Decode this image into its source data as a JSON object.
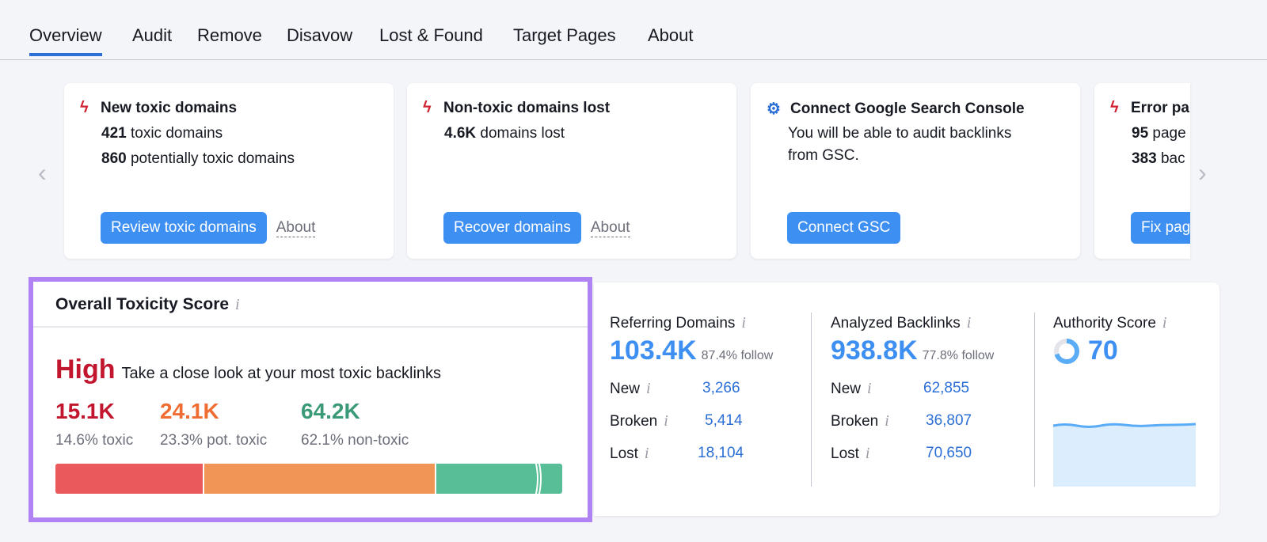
{
  "tabs": [
    "Overview",
    "Audit",
    "Remove",
    "Disavow",
    "Lost & Found",
    "Target Pages",
    "About"
  ],
  "cards": [
    {
      "icon": "bolt-icon",
      "title": "New toxic domains",
      "lines": [
        {
          "b": "421",
          "t": " toxic domains"
        },
        {
          "b": "860",
          "t": " potentially toxic domains"
        }
      ],
      "button": "Review toxic domains",
      "about": "About"
    },
    {
      "icon": "bolt-icon",
      "title": "Non-toxic domains lost",
      "lines": [
        {
          "b": "4.6K",
          "t": " domains lost"
        }
      ],
      "button": "Recover domains",
      "about": "About"
    },
    {
      "icon": "gear-icon",
      "title": "Connect Google Search Console",
      "lines": [
        {
          "b": "",
          "t": "You will be able to audit backlinks"
        },
        {
          "b": "",
          "t": "from GSC."
        }
      ],
      "button": "Connect GSC"
    },
    {
      "icon": "bolt-icon",
      "title": "Error pa",
      "lines": [
        {
          "b": "95",
          "t": " page"
        },
        {
          "b": "383",
          "t": " bac"
        }
      ],
      "button": "Fix pag"
    }
  ],
  "toxicity": {
    "title": "Overall Toxicity Score",
    "info": "i",
    "level": "High",
    "message": "Take a close look at your most toxic backlinks",
    "groups": [
      {
        "value": "15.1K",
        "pct": "14.6% toxic",
        "share": 14.6,
        "color": "#c2162e",
        "bar": "#ea5a5c"
      },
      {
        "value": "24.1K",
        "pct": "23.3% pot. toxic",
        "share": 23.3,
        "color": "#ef6d32",
        "bar": "#f09556"
      },
      {
        "value": "64.2K",
        "pct": "62.1% non-toxic",
        "share": 62.1,
        "color": "#3a9a78",
        "bar": "#58be97"
      }
    ]
  },
  "stats": {
    "referring": {
      "title": "Referring Domains",
      "value": "103.4K",
      "follow": "87.4% follow",
      "rows": [
        {
          "l": "New",
          "v": "3,266"
        },
        {
          "l": "Broken",
          "v": "5,414"
        },
        {
          "l": "Lost",
          "v": "18,104"
        }
      ]
    },
    "backlinks": {
      "title": "Analyzed Backlinks",
      "value": "938.8K",
      "follow": "77.8% follow",
      "rows": [
        {
          "l": "New",
          "v": "62,855"
        },
        {
          "l": "Broken",
          "v": "36,807"
        },
        {
          "l": "Lost",
          "v": "70,650"
        }
      ]
    },
    "authority": {
      "title": "Authority Score",
      "value": "70",
      "score": 70
    }
  }
}
